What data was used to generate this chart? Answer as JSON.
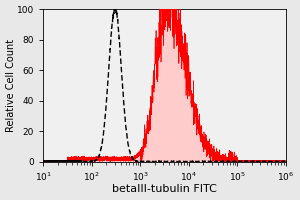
{
  "xlabel": "betaIII-tubulin FITC",
  "ylabel": "Relative Cell Count",
  "xlim_log": [
    1,
    6
  ],
  "ylim": [
    0,
    100
  ],
  "yticks": [
    0,
    20,
    40,
    60,
    80,
    100
  ],
  "background_color": "#e8e8e8",
  "plot_bg_color": "#f0f0f0",
  "isotype_color": "black",
  "antibody_fill_color": "#ffcccc",
  "antibody_line_color": "red",
  "isotype_log_mean": 2.48,
  "isotype_log_std": 0.13,
  "antibody_log_mean": 3.55,
  "antibody_log_std": 0.32,
  "xlabel_fontsize": 8,
  "ylabel_fontsize": 7,
  "tick_fontsize": 6.5
}
